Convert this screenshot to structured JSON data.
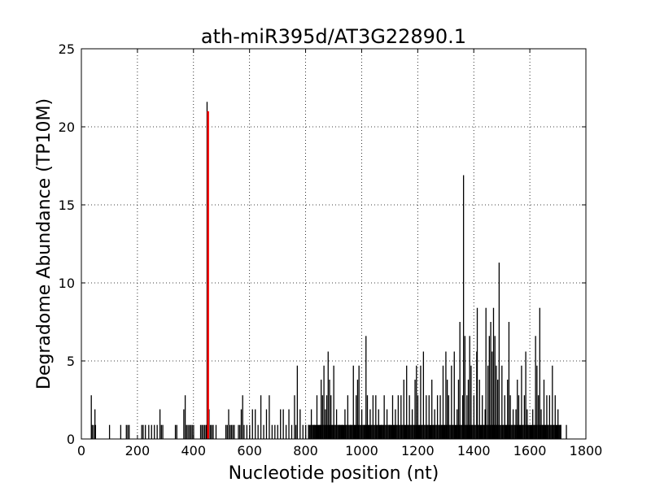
{
  "chart_data": {
    "type": "bar",
    "title": "ath-miR395d/AT3G22890.1",
    "xlabel": "Nucleotide position (nt)",
    "ylabel": "Degradome Abundance (TP10M)",
    "xlim": [
      0,
      1800
    ],
    "ylim": [
      0,
      25
    ],
    "xticks": [
      "0",
      "200",
      "400",
      "600",
      "800",
      "1000",
      "1200",
      "1400",
      "1600",
      "1800"
    ],
    "yticks": [
      "0",
      "5",
      "10",
      "15",
      "20",
      "25"
    ],
    "grid": true,
    "colors": {
      "background": "#ffffff",
      "bars": "#000000",
      "highlight": "#ff0000",
      "grid": "#000000"
    },
    "highlight": {
      "x": 452,
      "y": 21.0
    },
    "series": [
      {
        "x": [
          35,
          38,
          43,
          48,
          50,
          100,
          140,
          160,
          165,
          170,
          215,
          220,
          228,
          240,
          250,
          260,
          270,
          280,
          285,
          290,
          335,
          340,
          365,
          370,
          375,
          380,
          385,
          390,
          395,
          400,
          425,
          430,
          435,
          440,
          445,
          448,
          455,
          460,
          465,
          470,
          480,
          515,
          520,
          525,
          530,
          535,
          540,
          545,
          560,
          565,
          570,
          575,
          580,
          590,
          600,
          610,
          620,
          630,
          640,
          650,
          660,
          670,
          680,
          690,
          700,
          710,
          720,
          730,
          740,
          750,
          760,
          765,
          770,
          780,
          790,
          800,
          810,
          820,
          830,
          840,
          850,
          855,
          860,
          865,
          870,
          875,
          880,
          885,
          890,
          900,
          910,
          920,
          930,
          940,
          950,
          960,
          970,
          980,
          985,
          990,
          1000,
          1010,
          1015,
          1020,
          1030,
          1040,
          1050,
          1060,
          1070,
          1080,
          1090,
          1100,
          1110,
          1120,
          1130,
          1140,
          1150,
          1160,
          1170,
          1180,
          1190,
          1195,
          1200,
          1210,
          1220,
          1230,
          1240,
          1250,
          1260,
          1270,
          1280,
          1290,
          1300,
          1305,
          1310,
          1320,
          1330,
          1340,
          1345,
          1350,
          1360,
          1363,
          1368,
          1375,
          1380,
          1385,
          1390,
          1400,
          1410,
          1412,
          1420,
          1430,
          1440,
          1443,
          1450,
          1455,
          1460,
          1465,
          1470,
          1475,
          1480,
          1485,
          1490,
          1500,
          1510,
          1520,
          1525,
          1530,
          1540,
          1550,
          1555,
          1560,
          1570,
          1580,
          1585,
          1590,
          1600,
          1610,
          1620,
          1625,
          1630,
          1635,
          1640,
          1650,
          1660,
          1670,
          1680,
          1690,
          1700,
          1710,
          1730
        ],
        "y": [
          2.8,
          0.9,
          0.9,
          1.9,
          0.9,
          0.9,
          0.9,
          0.9,
          0.9,
          0.9,
          0.9,
          0.9,
          0.9,
          0.9,
          0.9,
          0.9,
          0.9,
          1.9,
          0.9,
          0.9,
          0.9,
          0.9,
          1.9,
          2.8,
          0.9,
          0.9,
          0.9,
          0.9,
          0.9,
          0.9,
          0.9,
          0.9,
          0.9,
          0.9,
          0.9,
          21.6,
          1.9,
          0.9,
          0.9,
          0.9,
          0.9,
          0.9,
          0.9,
          1.9,
          0.9,
          0.9,
          0.9,
          0.9,
          0.9,
          0.9,
          1.9,
          2.8,
          0.9,
          0.9,
          0.9,
          1.9,
          1.9,
          0.9,
          2.8,
          0.9,
          1.9,
          2.8,
          0.9,
          0.9,
          0.9,
          1.9,
          1.9,
          0.9,
          1.9,
          0.9,
          2.8,
          0.9,
          4.7,
          1.9,
          0.9,
          0.9,
          0.9,
          1.9,
          0.9,
          2.8,
          0.9,
          3.8,
          2.8,
          4.7,
          1.9,
          2.8,
          5.6,
          3.8,
          2.8,
          4.7,
          1.9,
          0.9,
          0.9,
          1.9,
          2.8,
          0.9,
          4.7,
          2.8,
          3.8,
          4.7,
          1.9,
          0.9,
          6.6,
          2.8,
          1.9,
          2.8,
          2.8,
          1.9,
          0.9,
          2.8,
          1.9,
          0.9,
          2.8,
          1.9,
          2.8,
          2.8,
          3.8,
          4.7,
          2.8,
          1.9,
          3.8,
          4.7,
          2.8,
          4.7,
          5.6,
          2.8,
          2.8,
          3.8,
          1.9,
          2.8,
          2.8,
          4.7,
          5.6,
          3.8,
          2.8,
          4.7,
          5.6,
          1.9,
          3.8,
          7.5,
          2.8,
          16.9,
          6.6,
          2.8,
          3.8,
          6.6,
          4.7,
          2.8,
          5.6,
          8.4,
          3.8,
          2.8,
          1.9,
          8.4,
          4.7,
          6.6,
          7.5,
          5.6,
          8.4,
          6.6,
          4.7,
          3.8,
          11.3,
          4.7,
          2.8,
          3.8,
          7.5,
          2.8,
          1.9,
          1.9,
          3.8,
          2.8,
          4.7,
          2.8,
          5.6,
          1.9,
          0.9,
          1.9,
          6.6,
          4.7,
          2.8,
          8.4,
          1.9,
          3.8,
          2.8,
          2.8,
          4.7,
          2.8,
          1.9,
          0.9,
          0.9
        ]
      }
    ]
  }
}
